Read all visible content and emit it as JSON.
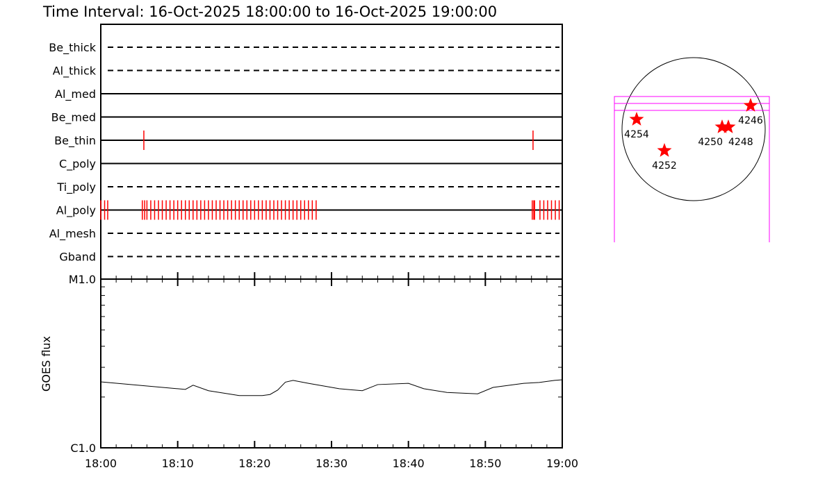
{
  "title": "Time Interval: 16-Oct-2025 18:00:00 to 16-Oct-2025 19:00:00",
  "chart_data": [
    {
      "type": "event-timeline",
      "x_range": [
        "18:00",
        "19:00"
      ],
      "rows": [
        {
          "name": "Be_thick",
          "style": "dashed",
          "events": []
        },
        {
          "name": "Al_thick",
          "style": "dashed",
          "events": []
        },
        {
          "name": "Al_med",
          "style": "solid",
          "events": []
        },
        {
          "name": "Be_med",
          "style": "solid",
          "events": []
        },
        {
          "name": "Be_thin",
          "style": "solid",
          "events": [
            5.6,
            56.2
          ]
        },
        {
          "name": "C_poly",
          "style": "solid",
          "events": []
        },
        {
          "name": "Ti_poly",
          "style": "dashed",
          "events": []
        },
        {
          "name": "Al_poly",
          "style": "solid",
          "events": [
            0.0,
            0.5,
            0.9,
            5.4,
            5.7,
            6.0,
            6.5,
            7.0,
            7.5,
            8.0,
            8.5,
            9.0,
            9.5,
            10.0,
            10.5,
            11.0,
            11.5,
            12.0,
            12.5,
            13.0,
            13.5,
            14.0,
            14.5,
            15.0,
            15.5,
            16.0,
            16.5,
            17.0,
            17.5,
            18.0,
            18.5,
            19.0,
            19.5,
            20.0,
            20.5,
            21.0,
            21.5,
            22.0,
            22.5,
            23.0,
            23.5,
            24.0,
            24.5,
            25.0,
            25.5,
            26.0,
            26.5,
            27.0,
            27.5,
            28.0,
            56.1,
            56.3,
            56.4,
            57.1,
            57.6,
            58.1,
            58.6,
            59.1,
            59.6
          ]
        },
        {
          "name": "Al_mesh",
          "style": "dashed",
          "events": []
        },
        {
          "name": "Gband",
          "style": "dashed",
          "events": []
        }
      ],
      "event_units": "minutes after 18:00",
      "event_color": "#ff0000"
    },
    {
      "type": "line",
      "ylabel": "GOES flux",
      "yscale": "log",
      "ylim": [
        1e-06,
        1e-05
      ],
      "ytick_labels": [
        "C1.0",
        "M1.0"
      ],
      "xtick_labels": [
        "18:00",
        "18:10",
        "18:20",
        "18:30",
        "18:40",
        "18:50",
        "19:00"
      ],
      "x_minutes": [
        0,
        10,
        11,
        12,
        14,
        18,
        21,
        22,
        23,
        24,
        25,
        27,
        31,
        34,
        36,
        40,
        42,
        45,
        49,
        51,
        55,
        57,
        59,
        60
      ],
      "y": [
        2.46e-06,
        2.24e-06,
        2.22e-06,
        2.35e-06,
        2.18e-06,
        2.04e-06,
        2.04e-06,
        2.07e-06,
        2.2e-06,
        2.45e-06,
        2.51e-06,
        2.41e-06,
        2.24e-06,
        2.18e-06,
        2.37e-06,
        2.41e-06,
        2.24e-06,
        2.13e-06,
        2.09e-06,
        2.28e-06,
        2.41e-06,
        2.44e-06,
        2.51e-06,
        2.53e-06
      ]
    },
    {
      "type": "map",
      "regions": [
        "4254",
        "4252",
        "4250",
        "4248",
        "4246"
      ],
      "marker_color": "#ff0000",
      "fov_color": "#ff00ff"
    }
  ]
}
